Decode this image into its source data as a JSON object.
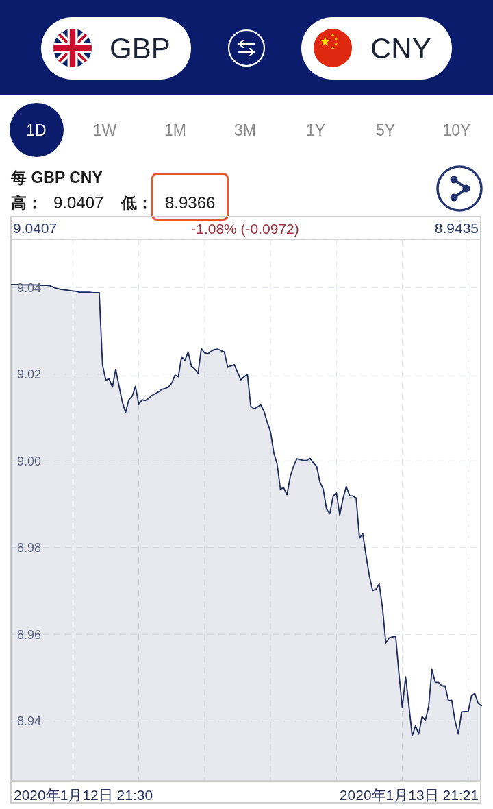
{
  "chart_data": {
    "type": "area",
    "title": "每 GBP CNY",
    "annotations": [
      "GBP",
      "CNY",
      "1D",
      "1W",
      "1M",
      "3M",
      "1Y",
      "5Y",
      "10Y",
      "高：",
      "9.0407",
      "低：",
      "8.9366",
      "9.0407",
      "-1.08% (-0.0972)",
      "8.9435",
      "2020年1月12日 21:30",
      "2020年1月13日 21:21"
    ],
    "categories": [
      null,
      null,
      null,
      null,
      null,
      null,
      null,
      null,
      null,
      null,
      null,
      null,
      null,
      null,
      null,
      null,
      null,
      null,
      null,
      null,
      null,
      null,
      null,
      null,
      null,
      null,
      null,
      null,
      null,
      null,
      null,
      null,
      null,
      null,
      null,
      null,
      null,
      null,
      null,
      null,
      null,
      null,
      null,
      null,
      null,
      null,
      null,
      null,
      null,
      null,
      null,
      null,
      null,
      null,
      null,
      null,
      null,
      null,
      null,
      null,
      null,
      null,
      null,
      null,
      null,
      null,
      null,
      null,
      null,
      null,
      null,
      null,
      null,
      null,
      null,
      null,
      null,
      null,
      null,
      null,
      null,
      null,
      null,
      null,
      null,
      null,
      null,
      null,
      null,
      null,
      null,
      null,
      null,
      null,
      null,
      null,
      null,
      null,
      null,
      null,
      null,
      null,
      null,
      null,
      null,
      null,
      null,
      null,
      null,
      null,
      null,
      null,
      null,
      null,
      null,
      null,
      null,
      null,
      null,
      null,
      null,
      null,
      null,
      null,
      null,
      null,
      null,
      null,
      null,
      null,
      null,
      null,
      null,
      null,
      null,
      null,
      null,
      null,
      null,
      null,
      null,
      null,
      null,
      null
    ],
    "values": [
      9.0407,
      9.0407,
      9.0407,
      9.0406,
      9.0406,
      9.0406,
      9.0406,
      9.0406,
      9.0406,
      9.0405,
      9.0405,
      9.0405,
      9.0404,
      9.0401,
      9.0398,
      9.0396,
      9.0395,
      9.0394,
      9.0393,
      9.0392,
      9.0391,
      9.0389,
      9.0389,
      9.0389,
      9.0389,
      9.0388,
      9.0388,
      9.0388,
      9.0221,
      9.0186,
      9.0189,
      9.017,
      9.0211,
      9.0173,
      9.0136,
      9.0112,
      9.0141,
      9.0149,
      9.0172,
      9.013,
      9.0141,
      9.0139,
      9.0144,
      9.0151,
      9.0155,
      9.0159,
      9.0165,
      9.0167,
      9.017,
      9.0179,
      9.0198,
      9.0194,
      9.024,
      9.0232,
      9.0251,
      9.0218,
      9.0212,
      9.0202,
      9.0259,
      9.0249,
      9.0247,
      9.0253,
      9.0257,
      9.0258,
      9.0254,
      9.0251,
      9.0216,
      9.0219,
      9.0222,
      9.0204,
      9.0187,
      9.0194,
      9.0199,
      9.0126,
      9.012,
      9.0124,
      9.0129,
      9.0115,
      9.0089,
      9.0067,
      9.0019,
      8.9993,
      8.9935,
      8.9938,
      8.9922,
      8.9964,
      8.9988,
      9.0005,
      9.0003,
      9.0001,
      9.0001,
      9.0006,
      8.9995,
      8.9988,
      8.9951,
      8.9935,
      8.9889,
      8.9878,
      8.9918,
      8.9927,
      8.9875,
      8.9913,
      8.9941,
      8.992,
      8.9919,
      8.9914,
      8.9822,
      8.9832,
      8.9782,
      8.9735,
      8.9701,
      8.9704,
      8.9716,
      8.9661,
      8.958,
      8.9592,
      8.9594,
      8.9595,
      8.9508,
      8.9431,
      8.9502,
      8.9436,
      8.9366,
      8.9389,
      8.937,
      8.941,
      8.9402,
      8.9434,
      8.9519,
      8.9489,
      8.9489,
      8.9481,
      8.9481,
      8.9447,
      8.9448,
      8.9401,
      8.937,
      8.9421,
      8.9422,
      8.9422,
      8.9458,
      8.9464,
      8.9441,
      8.9435
    ],
    "color": "#1c2a5c",
    "ylim": [
      8.9262,
      9.0511
    ],
    "yticks": [
      8.94,
      8.96,
      8.98,
      {
        "value": 9,
        "label": "9.00"
      },
      9.02,
      9.04
    ],
    "tick_labels": "y",
    "grid": true
  }
}
